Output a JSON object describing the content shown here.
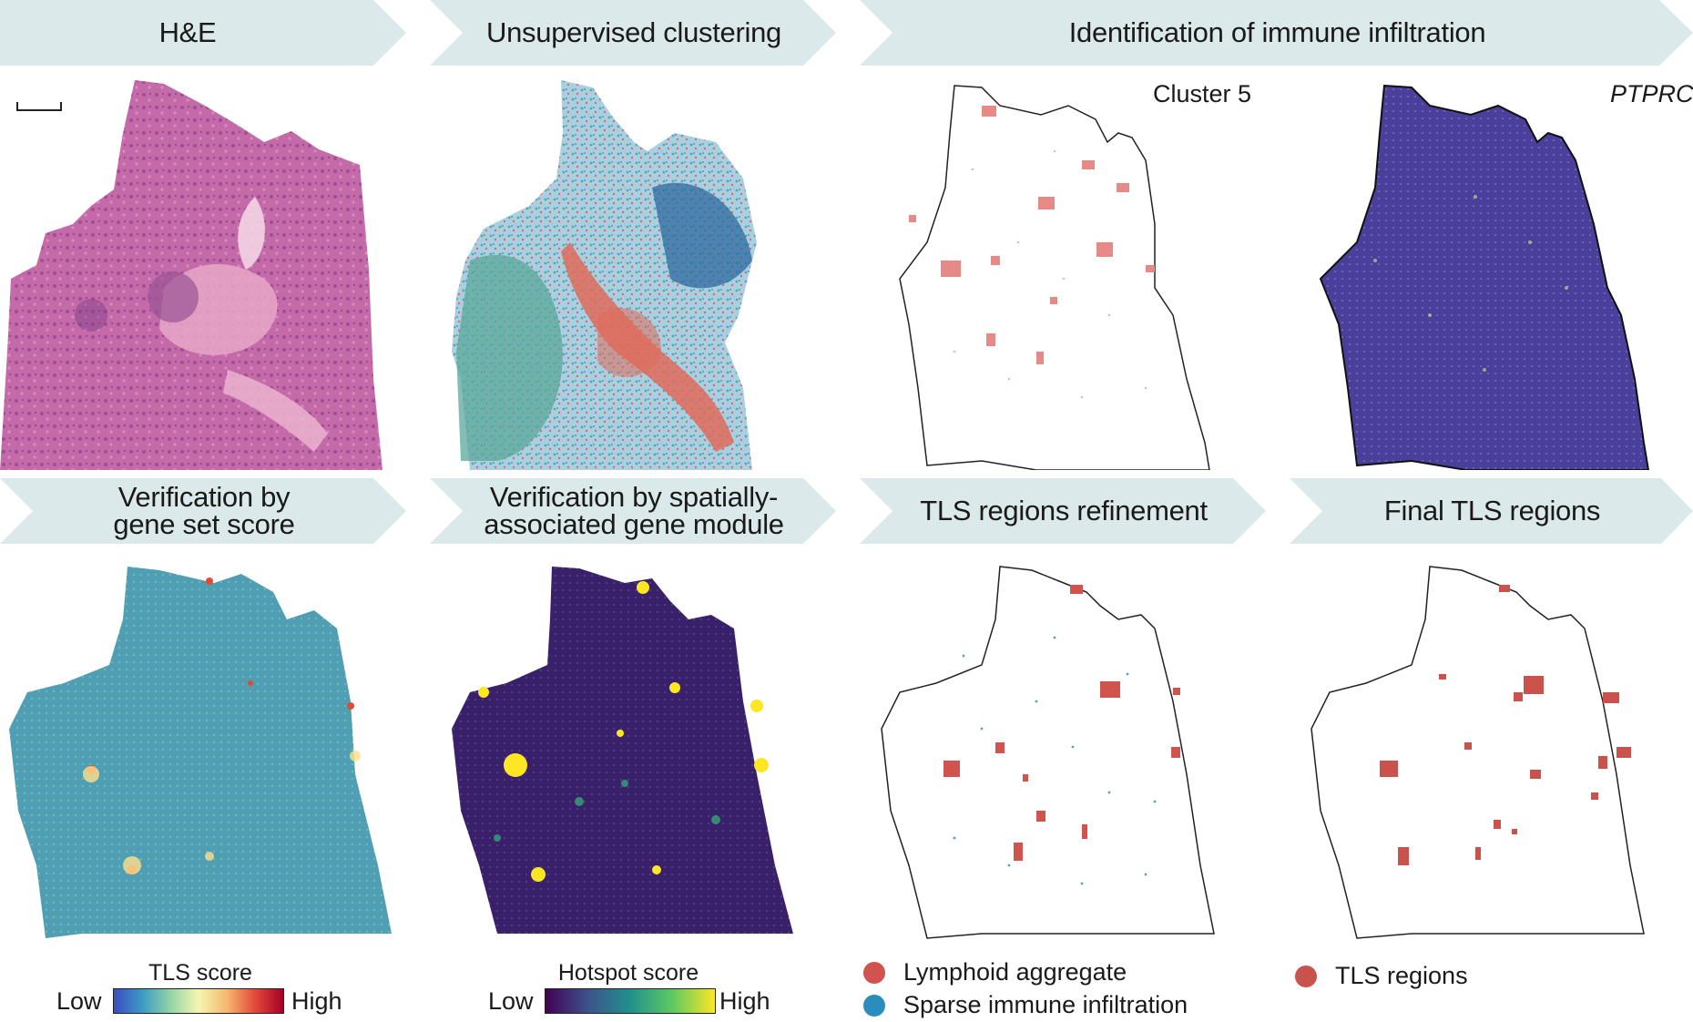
{
  "banners": {
    "he": "H&E",
    "clustering": "Unsupervised clustering",
    "immune": "Identification of immune infiltration",
    "geneset_line1": "Verification by",
    "geneset_line2": "gene set score",
    "module_line1": "Verification by spatially-",
    "module_line2": "associated gene module",
    "refinement": "TLS regions refinement",
    "final": "Final TLS regions"
  },
  "panels": {
    "cluster5_label": "Cluster 5",
    "ptprc_label": "PTPRC"
  },
  "colorbars": {
    "tls": {
      "title": "TLS score",
      "low": "Low",
      "high": "High"
    },
    "hotspot": {
      "title": "Hotspot score",
      "low": "Low",
      "high": "High"
    }
  },
  "legends": {
    "lymphoid": "Lymphoid aggregate",
    "sparse": "Sparse immune infiltration",
    "tls_regions": "TLS regions"
  },
  "colors": {
    "banner_fill": "#dbe9ea",
    "lymphoid": "#d0534d",
    "sparse": "#2b8cbe",
    "tls_region": "#c9524d",
    "ptprc_fill": "#4a3f9a"
  }
}
